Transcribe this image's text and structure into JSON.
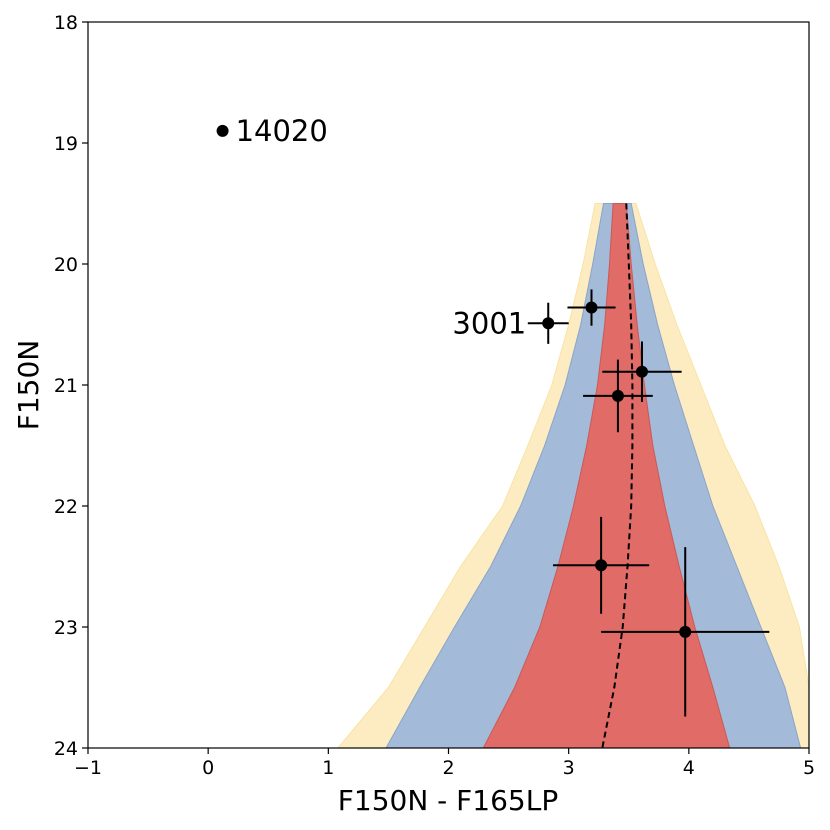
{
  "chart_data": {
    "type": "scatter",
    "title": "",
    "xlabel": "F150N - F165LP",
    "ylabel": "F150N",
    "xlim": [
      -1,
      5
    ],
    "ylim": [
      24,
      18
    ],
    "y_inverted": true,
    "grid": false,
    "x_ticks": [
      {
        "value": -1,
        "label": "−1"
      },
      {
        "value": 0,
        "label": "0"
      },
      {
        "value": 1,
        "label": "1"
      },
      {
        "value": 2,
        "label": "2"
      },
      {
        "value": 3,
        "label": "3"
      },
      {
        "value": 4,
        "label": "4"
      },
      {
        "value": 5,
        "label": "5"
      }
    ],
    "y_ticks": [
      {
        "value": 18,
        "label": "18"
      },
      {
        "value": 19,
        "label": "19"
      },
      {
        "value": 20,
        "label": "20"
      },
      {
        "value": 21,
        "label": "21"
      },
      {
        "value": 22,
        "label": "22"
      },
      {
        "value": 23,
        "label": "23"
      },
      {
        "value": 24,
        "label": "24"
      }
    ],
    "points": [
      {
        "x": 0.12,
        "y": 18.9,
        "xerr": 0,
        "yerr": 0,
        "label": "14020",
        "label_side": "right"
      },
      {
        "x": 2.83,
        "y": 20.49,
        "xerr": 0.17,
        "yerr": 0.17,
        "label": "3001",
        "label_side": "left"
      },
      {
        "x": 3.19,
        "y": 20.36,
        "xerr": 0.2,
        "yerr": 0.15,
        "label": "",
        "label_side": ""
      },
      {
        "x": 3.61,
        "y": 20.89,
        "xerr": 0.33,
        "yerr": 0.25,
        "label": "",
        "label_side": ""
      },
      {
        "x": 3.41,
        "y": 21.09,
        "xerr": 0.29,
        "yerr": 0.3,
        "label": "",
        "label_side": ""
      },
      {
        "x": 3.27,
        "y": 22.49,
        "xerr": 0.4,
        "yerr": 0.4,
        "label": "",
        "label_side": ""
      },
      {
        "x": 3.97,
        "y": 23.04,
        "xerr": 0.7,
        "yerr": 0.7,
        "label": "",
        "label_side": ""
      }
    ],
    "bands": [
      {
        "level": "outer",
        "color": "#fdecc2",
        "edge": "#f9e3a3",
        "left": [
          [
            3.22,
            19.5
          ],
          [
            3.12,
            20.0
          ],
          [
            3.0,
            20.5
          ],
          [
            2.86,
            21.0
          ],
          [
            2.66,
            21.5
          ],
          [
            2.45,
            22.0
          ],
          [
            2.1,
            22.5
          ],
          [
            1.8,
            23.0
          ],
          [
            1.5,
            23.5
          ],
          [
            1.08,
            24.0
          ]
        ],
        "right": [
          [
            3.56,
            19.5
          ],
          [
            3.72,
            20.0
          ],
          [
            3.9,
            20.5
          ],
          [
            4.1,
            21.0
          ],
          [
            4.3,
            21.5
          ],
          [
            4.55,
            22.0
          ],
          [
            4.75,
            22.5
          ],
          [
            4.92,
            23.0
          ],
          [
            5.0,
            23.5
          ],
          [
            5.0,
            24.0
          ]
        ]
      },
      {
        "level": "middle",
        "color": "#a3bbd8",
        "edge": "#8aa4c8",
        "left": [
          [
            3.29,
            19.5
          ],
          [
            3.2,
            20.0
          ],
          [
            3.1,
            20.5
          ],
          [
            2.97,
            21.0
          ],
          [
            2.8,
            21.5
          ],
          [
            2.6,
            22.0
          ],
          [
            2.35,
            22.5
          ],
          [
            2.05,
            23.0
          ],
          [
            1.76,
            23.5
          ],
          [
            1.48,
            24.0
          ]
        ],
        "right": [
          [
            3.52,
            19.5
          ],
          [
            3.62,
            20.0
          ],
          [
            3.74,
            20.5
          ],
          [
            3.88,
            21.0
          ],
          [
            4.04,
            21.5
          ],
          [
            4.2,
            22.0
          ],
          [
            4.4,
            22.5
          ],
          [
            4.6,
            23.0
          ],
          [
            4.8,
            23.5
          ],
          [
            4.93,
            24.0
          ]
        ]
      },
      {
        "level": "inner",
        "color": "#e06b67",
        "edge": "#c85a57",
        "left": [
          [
            3.37,
            19.5
          ],
          [
            3.34,
            20.0
          ],
          [
            3.3,
            20.5
          ],
          [
            3.24,
            21.0
          ],
          [
            3.15,
            21.5
          ],
          [
            3.04,
            22.0
          ],
          [
            2.91,
            22.5
          ],
          [
            2.76,
            23.0
          ],
          [
            2.55,
            23.5
          ],
          [
            2.29,
            24.0
          ]
        ],
        "right": [
          [
            3.48,
            19.5
          ],
          [
            3.52,
            20.0
          ],
          [
            3.57,
            20.5
          ],
          [
            3.63,
            21.0
          ],
          [
            3.7,
            21.5
          ],
          [
            3.8,
            22.0
          ],
          [
            3.92,
            22.5
          ],
          [
            4.05,
            23.0
          ],
          [
            4.2,
            23.5
          ],
          [
            4.34,
            24.0
          ]
        ]
      }
    ],
    "median_curve": {
      "style": "dashed",
      "points": [
        [
          3.48,
          19.5
        ],
        [
          3.5,
          20.0
        ],
        [
          3.52,
          20.5
        ],
        [
          3.53,
          21.0
        ],
        [
          3.53,
          21.5
        ],
        [
          3.52,
          22.0
        ],
        [
          3.49,
          22.5
        ],
        [
          3.45,
          23.0
        ],
        [
          3.38,
          23.5
        ],
        [
          3.28,
          24.0
        ]
      ]
    }
  }
}
